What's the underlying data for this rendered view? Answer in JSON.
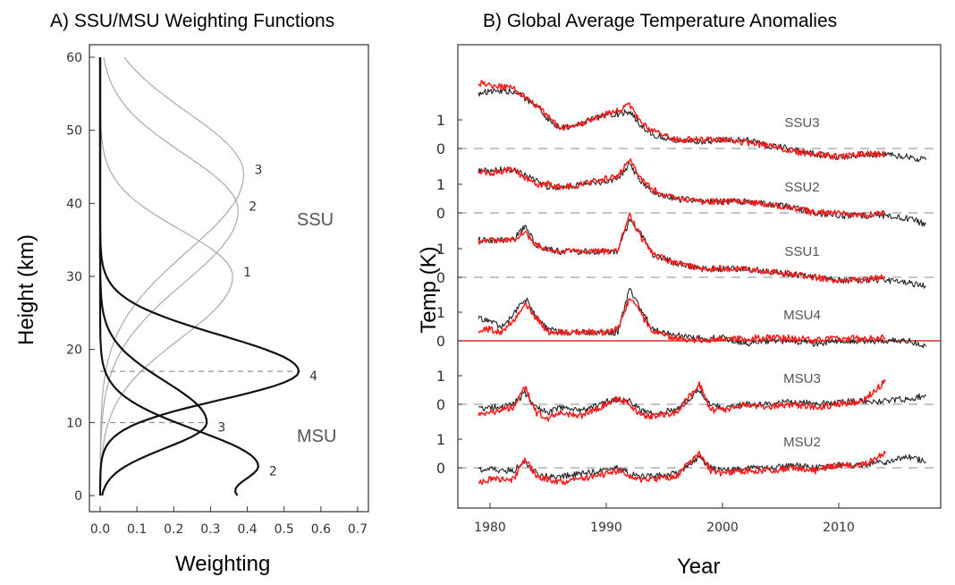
{
  "panel_a": {
    "title": "A) SSU/MSU Weighting Functions",
    "xlabel": "Weighting",
    "ylabel": "Height (km)",
    "section_labels": [
      "SSU",
      "MSU"
    ]
  },
  "panel_b": {
    "title": "B) Global Average Temperature Anomalies",
    "xlabel": "Year",
    "ylabel": "Temp (K)"
  },
  "colors": {
    "ssu_curve": "#a9a9a9",
    "msu_curve": "#111111",
    "series_black": "#222222",
    "series_red": "#ff1a1a",
    "zero_line": "#a0a0a0"
  },
  "chart_data": [
    {
      "type": "line",
      "title": "A) SSU/MSU Weighting Functions",
      "xlabel": "Weighting",
      "ylabel": "Height (km)",
      "xlim": [
        0.0,
        0.7
      ],
      "ylim": [
        0,
        60
      ],
      "xticks": [
        "0.0",
        "0.1",
        "0.2",
        "0.3",
        "0.4",
        "0.5",
        "0.6",
        "0.7"
      ],
      "yticks": [
        "0",
        "10",
        "20",
        "30",
        "40",
        "50",
        "60"
      ],
      "series": [
        {
          "name": "3",
          "group": "SSU",
          "peak_weight": 0.39,
          "peak_height": 44,
          "low_sigma": 15,
          "high_sigma": 12,
          "base": 0.0
        },
        {
          "name": "2",
          "group": "SSU",
          "peak_weight": 0.375,
          "peak_height": 39,
          "low_sigma": 14,
          "high_sigma": 11,
          "base": 0.0
        },
        {
          "name": "1",
          "group": "SSU",
          "peak_weight": 0.36,
          "peak_height": 30,
          "low_sigma": 12,
          "high_sigma": 9,
          "base": 0.0
        },
        {
          "name": "4",
          "group": "MSU",
          "peak_weight": 0.54,
          "peak_height": 17,
          "low_sigma": 5.5,
          "high_sigma": 7,
          "base": 0.0
        },
        {
          "name": "3",
          "group": "MSU",
          "peak_weight": 0.29,
          "peak_height": 10,
          "low_sigma": 5,
          "high_sigma": 8,
          "base": 0.0
        },
        {
          "name": "2",
          "group": "MSU",
          "peak_weight": 0.43,
          "peak_height": 4,
          "low_sigma": 4,
          "high_sigma": 7,
          "base": 0.34
        }
      ],
      "reference_lines": [
        {
          "height": 17,
          "weight_to": 0.54
        },
        {
          "height": 10,
          "weight_to": 0.29
        }
      ]
    },
    {
      "type": "line",
      "title": "B) Global Average Temperature Anomalies",
      "xlabel": "Year",
      "ylabel": "Temp (K)",
      "xlim": [
        1978,
        2018
      ],
      "xticks": [
        "1980",
        "1990",
        "2000",
        "2010"
      ],
      "yticks": [
        "0",
        "1"
      ],
      "series_colors": [
        "black",
        "red"
      ],
      "panels": [
        {
          "name": "SSU3",
          "x": [
            1979,
            1980,
            1982,
            1984,
            1985,
            1986,
            1988,
            1990,
            1991,
            1992,
            1993,
            1994,
            1996,
            1998,
            2000,
            2002,
            2004,
            2006,
            2008,
            2010,
            2012,
            2014,
            2016,
            2017.5
          ],
          "black": [
            1.9,
            2.0,
            2.0,
            1.5,
            1.0,
            0.7,
            0.9,
            1.2,
            1.2,
            1.3,
            0.8,
            0.5,
            0.3,
            0.2,
            0.3,
            0.3,
            0.1,
            0.0,
            -0.2,
            -0.3,
            -0.2,
            -0.2,
            -0.3,
            -0.4
          ],
          "red": [
            2.3,
            2.2,
            2.1,
            1.5,
            1.1,
            0.7,
            0.9,
            1.2,
            1.3,
            1.5,
            0.9,
            0.6,
            0.3,
            0.3,
            0.3,
            0.2,
            0.1,
            -0.1,
            -0.2,
            -0.3,
            -0.2,
            -0.2
          ]
        },
        {
          "name": "SSU2",
          "x": [
            1979,
            1980,
            1982,
            1984,
            1985,
            1986,
            1988,
            1990,
            1991,
            1992,
            1993,
            1994,
            1996,
            1998,
            2000,
            2002,
            2004,
            2006,
            2008,
            2010,
            2012,
            2014,
            2016,
            2017.5
          ],
          "black": [
            1.5,
            1.5,
            1.5,
            1.1,
            0.9,
            0.9,
            1.0,
            1.1,
            1.2,
            1.7,
            1.1,
            0.7,
            0.5,
            0.4,
            0.4,
            0.4,
            0.3,
            0.2,
            0.0,
            -0.1,
            -0.1,
            -0.1,
            -0.2,
            -0.4
          ],
          "red": [
            1.4,
            1.4,
            1.5,
            1.0,
            1.0,
            0.9,
            1.0,
            1.2,
            1.3,
            1.9,
            1.2,
            0.8,
            0.5,
            0.4,
            0.4,
            0.4,
            0.3,
            0.2,
            0.0,
            0.0,
            -0.1,
            0.0
          ]
        },
        {
          "name": "SSU1",
          "x": [
            1979,
            1980,
            1982,
            1983,
            1984,
            1986,
            1988,
            1990,
            1991,
            1992,
            1993,
            1994,
            1996,
            1998,
            2000,
            2002,
            2004,
            2006,
            2008,
            2010,
            2012,
            2014,
            2016,
            2017.5
          ],
          "black": [
            1.3,
            1.3,
            1.3,
            1.8,
            1.1,
            0.9,
            0.9,
            0.9,
            0.9,
            2.0,
            1.5,
            0.8,
            0.5,
            0.3,
            0.3,
            0.3,
            0.2,
            0.1,
            0.0,
            -0.1,
            -0.1,
            -0.1,
            -0.2,
            -0.3
          ],
          "red": [
            1.2,
            1.3,
            1.3,
            1.6,
            1.1,
            0.9,
            0.9,
            0.9,
            1.0,
            2.2,
            1.4,
            0.8,
            0.5,
            0.3,
            0.3,
            0.3,
            0.2,
            0.1,
            0.0,
            -0.1,
            -0.1,
            0.0
          ]
        },
        {
          "name": "MSU4",
          "x": [
            1979,
            1980,
            1981,
            1982,
            1983,
            1984,
            1985,
            1986,
            1988,
            1990,
            1991,
            1992,
            1993,
            1994,
            1996,
            1998,
            2000,
            2002,
            2004,
            2006,
            2008,
            2010,
            2012,
            2014,
            2016,
            2017.5
          ],
          "black": [
            0.8,
            0.7,
            0.5,
            0.9,
            1.5,
            0.8,
            0.4,
            0.3,
            0.3,
            0.3,
            0.3,
            1.8,
            1.1,
            0.4,
            0.2,
            0.1,
            0.1,
            -0.1,
            0.0,
            0.0,
            -0.1,
            0.0,
            0.0,
            0.0,
            0.0,
            -0.2
          ],
          "red": [
            0.4,
            0.4,
            0.3,
            0.7,
            1.3,
            0.8,
            0.3,
            0.3,
            0.3,
            0.3,
            0.4,
            1.5,
            0.9,
            0.3,
            0.1,
            0.0,
            0.1,
            0.1,
            0.1,
            0.1,
            0.0,
            0.1,
            0.1,
            0.1
          ]
        },
        {
          "name": "MSU3",
          "x": [
            1979,
            1980,
            1981,
            1982,
            1983,
            1984,
            1985,
            1986,
            1988,
            1990,
            1991,
            1992,
            1993,
            1994,
            1996,
            1998,
            1999,
            2000,
            2002,
            2004,
            2006,
            2008,
            2010,
            2012,
            2014,
            2016,
            2017.5
          ],
          "black": [
            -0.2,
            -0.1,
            -0.1,
            0.0,
            0.4,
            -0.1,
            -0.3,
            -0.1,
            -0.2,
            0.1,
            0.2,
            0.1,
            -0.2,
            -0.3,
            -0.2,
            0.5,
            0.0,
            -0.1,
            0.0,
            0.0,
            0.1,
            0.0,
            0.1,
            0.1,
            0.1,
            0.2,
            0.3
          ],
          "red": [
            -0.4,
            -0.3,
            -0.2,
            -0.1,
            0.6,
            -0.3,
            -0.5,
            -0.3,
            -0.4,
            0.0,
            0.2,
            0.0,
            -0.4,
            -0.4,
            -0.3,
            0.7,
            -0.2,
            -0.2,
            0.0,
            -0.1,
            0.0,
            -0.1,
            0.0,
            0.1,
            0.8
          ]
        },
        {
          "name": "MSU2",
          "x": [
            1979,
            1980,
            1981,
            1982,
            1983,
            1984,
            1985,
            1986,
            1988,
            1990,
            1991,
            1992,
            1993,
            1994,
            1996,
            1998,
            1999,
            2000,
            2002,
            2004,
            2006,
            2008,
            2010,
            2012,
            2014,
            2016,
            2017.5
          ],
          "black": [
            -0.1,
            0.0,
            -0.1,
            -0.1,
            0.2,
            -0.2,
            -0.3,
            -0.3,
            -0.2,
            -0.1,
            0.0,
            -0.2,
            -0.3,
            -0.3,
            -0.2,
            0.4,
            0.0,
            -0.1,
            0.0,
            0.0,
            0.1,
            0.0,
            0.1,
            0.1,
            0.2,
            0.4,
            0.2
          ],
          "red": [
            -0.5,
            -0.4,
            -0.4,
            -0.4,
            0.3,
            -0.3,
            -0.4,
            -0.5,
            -0.4,
            -0.2,
            -0.1,
            -0.3,
            -0.4,
            -0.4,
            -0.3,
            0.5,
            -0.1,
            -0.2,
            -0.1,
            -0.1,
            0.0,
            -0.1,
            0.1,
            0.1,
            0.5
          ]
        }
      ]
    }
  ]
}
